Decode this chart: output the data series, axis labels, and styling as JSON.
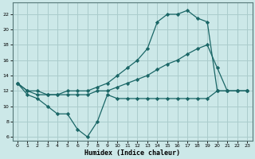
{
  "xlabel": "Humidex (Indice chaleur)",
  "bg_color": "#cce8e8",
  "grid_color": "#aacccc",
  "line_color": "#1a6666",
  "xlim": [
    -0.5,
    23.5
  ],
  "ylim": [
    5.5,
    23.5
  ],
  "yticks": [
    6,
    8,
    10,
    12,
    14,
    16,
    18,
    20,
    22
  ],
  "xticks": [
    0,
    1,
    2,
    3,
    4,
    5,
    6,
    7,
    8,
    9,
    10,
    11,
    12,
    13,
    14,
    15,
    16,
    17,
    18,
    19,
    20,
    21,
    22,
    23
  ],
  "series1_x": [
    0,
    1,
    2,
    3,
    4,
    5,
    6,
    7,
    8,
    9,
    10,
    11,
    12,
    13,
    14,
    15,
    16,
    17,
    18,
    19,
    20,
    21,
    22,
    23
  ],
  "series1_y": [
    13,
    11.5,
    11,
    10,
    9,
    9,
    7,
    6,
    8,
    11.5,
    11,
    11,
    11,
    11,
    11,
    11,
    11,
    11,
    11,
    11,
    12,
    12,
    12,
    12
  ],
  "series2_x": [
    0,
    1,
    2,
    3,
    4,
    5,
    6,
    7,
    8,
    9,
    10,
    11,
    12,
    13,
    14,
    15,
    16,
    17,
    18,
    19,
    20,
    21,
    22,
    23
  ],
  "series2_y": [
    13,
    12,
    11.5,
    11.5,
    11.5,
    11.5,
    11.5,
    11.5,
    12,
    12,
    12.5,
    13,
    13.5,
    14,
    14.8,
    15.5,
    16,
    16.8,
    17.5,
    18,
    15,
    12,
    12,
    12
  ],
  "series3_x": [
    0,
    1,
    2,
    3,
    4,
    5,
    6,
    7,
    8,
    9,
    10,
    11,
    12,
    13,
    14,
    15,
    16,
    17,
    18,
    19,
    20,
    21,
    22,
    23
  ],
  "series3_y": [
    13,
    12,
    12,
    11.5,
    11.5,
    12,
    12,
    12,
    12.5,
    13,
    14,
    15,
    16,
    17.5,
    21,
    22,
    22,
    22.5,
    21.5,
    21,
    12,
    12,
    12,
    12
  ]
}
